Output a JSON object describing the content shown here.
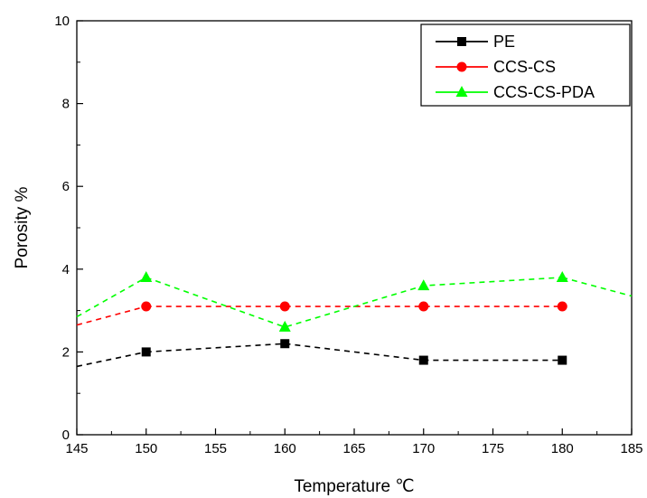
{
  "chart_data": {
    "type": "line",
    "title": "",
    "xlabel": "Temperature ℃",
    "ylabel": "Porosity %",
    "xlim": [
      145,
      185
    ],
    "ylim": [
      0,
      10
    ],
    "x_ticks": [
      145,
      150,
      155,
      160,
      165,
      170,
      175,
      180,
      185
    ],
    "y_ticks": [
      0,
      2,
      4,
      6,
      8,
      10
    ],
    "grid": false,
    "legend_position": "top-right",
    "series": [
      {
        "name": "PE",
        "color": "#000000",
        "marker": "square",
        "points": [
          [
            150,
            2.0
          ],
          [
            160,
            2.2
          ],
          [
            170,
            1.8
          ],
          [
            180,
            1.8
          ]
        ],
        "line_extension": [
          [
            145,
            1.65
          ],
          [
            150,
            2.0
          ]
        ]
      },
      {
        "name": "CCS-CS",
        "color": "#ff0000",
        "marker": "circle",
        "points": [
          [
            150,
            3.1
          ],
          [
            160,
            3.1
          ],
          [
            170,
            3.1
          ],
          [
            180,
            3.1
          ]
        ],
        "line_extension": [
          [
            145,
            2.65
          ],
          [
            150,
            3.1
          ]
        ]
      },
      {
        "name": "CCS-CS-PDA",
        "color": "#00ff00",
        "marker": "triangle",
        "points": [
          [
            150,
            3.8
          ],
          [
            160,
            2.6
          ],
          [
            170,
            3.6
          ],
          [
            180,
            3.8
          ]
        ],
        "line_extension": [
          [
            145,
            2.85
          ],
          [
            150,
            3.8
          ]
        ],
        "line_extension_end": [
          [
            180,
            3.8
          ],
          [
            185,
            3.35
          ]
        ]
      }
    ]
  }
}
